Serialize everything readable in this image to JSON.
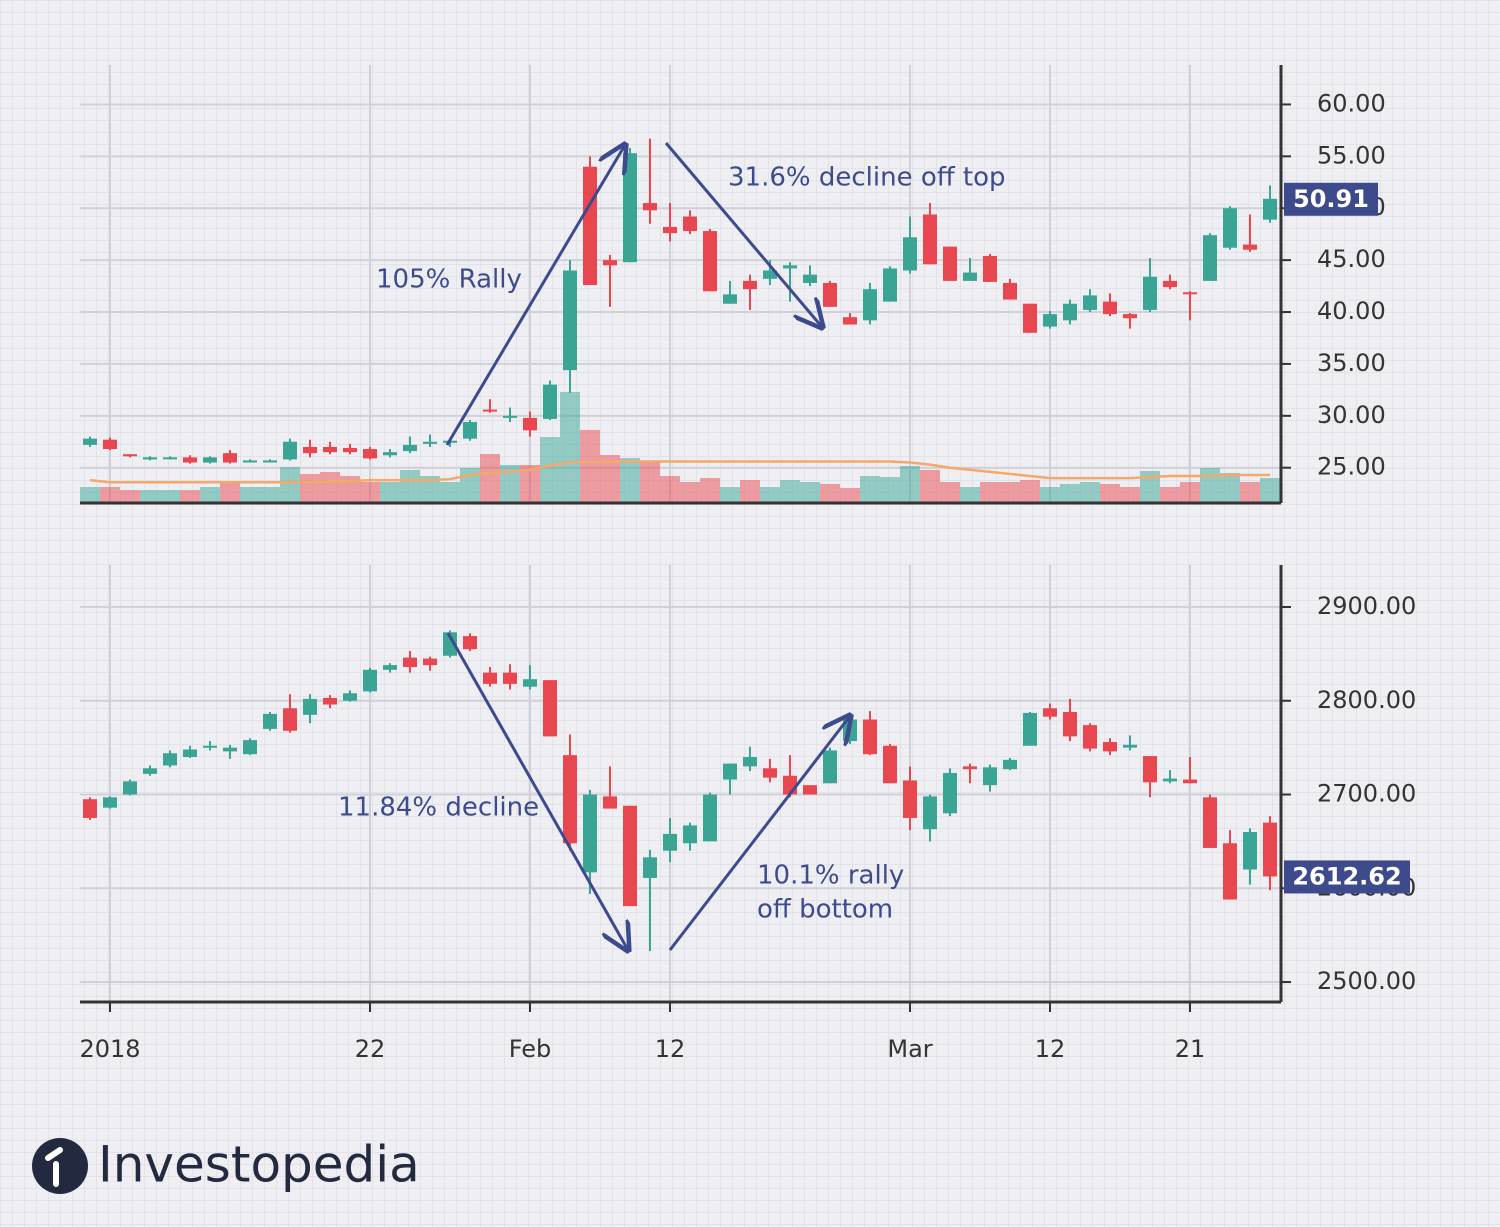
{
  "chart_data": [
    {
      "type": "candlestick",
      "open": [
        27.2,
        27.7,
        26.3,
        25.8,
        25.9,
        26.0,
        25.5,
        26.4,
        25.6,
        25.6,
        25.8,
        27.0,
        27.0,
        26.9,
        26.8,
        26.2,
        26.6,
        27.3,
        27.4,
        27.8,
        30.6,
        29.8,
        29.8,
        29.7,
        34.4,
        54.0,
        45.0,
        44.8,
        50.5,
        48.2,
        49.2,
        47.8,
        40.8,
        43.0,
        43.2,
        44.2,
        42.8,
        42.8,
        39.5,
        39.2,
        41.0,
        44.0,
        49.4,
        46.3,
        43.0,
        45.4,
        42.8,
        40.8,
        38.6,
        39.2,
        40.2,
        41.0,
        39.8,
        40.2,
        43.0,
        41.9,
        43.0,
        46.2,
        46.5,
        48.9
      ],
      "high": [
        28.0,
        27.9,
        26.3,
        26.1,
        26.1,
        26.2,
        26.1,
        26.7,
        25.8,
        25.8,
        27.8,
        27.7,
        27.5,
        27.3,
        27.0,
        26.8,
        28.0,
        28.2,
        27.8,
        29.6,
        31.6,
        30.8,
        30.4,
        33.4,
        45.0,
        55.0,
        45.5,
        55.8,
        56.7,
        50.5,
        49.8,
        48.0,
        43.0,
        43.6,
        45.0,
        44.8,
        44.5,
        43.0,
        39.9,
        42.8,
        44.4,
        49.2,
        50.5,
        46.3,
        45.2,
        45.6,
        43.2,
        40.8,
        40.1,
        41.2,
        42.2,
        41.8,
        39.9,
        45.2,
        43.6,
        42.0,
        47.6,
        50.2,
        49.4,
        52.2
      ],
      "low": [
        27.0,
        26.7,
        26.0,
        25.7,
        25.8,
        25.4,
        25.4,
        25.4,
        25.5,
        25.5,
        25.7,
        26.0,
        26.3,
        26.3,
        25.8,
        26.0,
        26.4,
        27.0,
        27.0,
        27.6,
        30.3,
        29.4,
        28.0,
        29.6,
        32.2,
        42.6,
        40.5,
        44.8,
        48.5,
        46.8,
        47.5,
        42.0,
        40.8,
        40.2,
        42.6,
        41.0,
        42.5,
        40.5,
        38.8,
        38.8,
        41.0,
        43.7,
        44.6,
        43.0,
        43.0,
        42.9,
        41.2,
        38.0,
        38.4,
        38.8,
        40.0,
        39.6,
        38.4,
        40.0,
        42.2,
        39.2,
        43.0,
        46.0,
        45.8,
        48.6
      ],
      "close": [
        27.8,
        26.8,
        26.1,
        26.0,
        26.0,
        25.5,
        26.0,
        25.5,
        25.7,
        25.7,
        27.5,
        26.4,
        26.5,
        26.5,
        25.9,
        26.5,
        27.2,
        27.5,
        27.6,
        29.4,
        30.5,
        30.0,
        28.6,
        33.0,
        44.0,
        42.6,
        44.5,
        55.3,
        49.8,
        47.6,
        47.8,
        42.0,
        41.7,
        42.2,
        44.0,
        44.5,
        43.6,
        40.5,
        38.8,
        42.2,
        44.2,
        47.2,
        44.6,
        43.0,
        43.8,
        42.9,
        41.2,
        38.0,
        39.8,
        40.8,
        41.6,
        39.8,
        39.4,
        43.4,
        42.4,
        41.8,
        47.4,
        50.0,
        46.0,
        50.91
      ],
      "volume": [
        16,
        16,
        13,
        13,
        13,
        13,
        16,
        21,
        16,
        16,
        36,
        29,
        31,
        27,
        21,
        21,
        33,
        27,
        21,
        35,
        49,
        38,
        38,
        66,
        111,
        73,
        48,
        45,
        41,
        27,
        21,
        25,
        16,
        23,
        16,
        23,
        21,
        19,
        15,
        27,
        26,
        37,
        33,
        21,
        16,
        21,
        21,
        23,
        16,
        19,
        21,
        19,
        16,
        32,
        16,
        21,
        35,
        30,
        21,
        25
      ],
      "ma": [
        23.8,
        23.6,
        23.6,
        23.6,
        23.6,
        23.6,
        23.6,
        23.6,
        23.6,
        23.6,
        23.6,
        23.6,
        23.7,
        23.7,
        23.8,
        23.8,
        23.8,
        23.8,
        23.9,
        24.3,
        24.5,
        24.6,
        24.8,
        25.2,
        25.5,
        25.6,
        25.6,
        25.6,
        25.6,
        25.6,
        25.6,
        25.6,
        25.6,
        25.6,
        25.6,
        25.6,
        25.6,
        25.6,
        25.6,
        25.6,
        25.6,
        25.5,
        25.3,
        25.0,
        24.8,
        24.6,
        24.4,
        24.2,
        24.0,
        24.0,
        24.0,
        24.0,
        24.0,
        24.1,
        24.2,
        24.2,
        24.2,
        24.3,
        24.3,
        24.3
      ],
      "up_color": "#3aa595",
      "down_color": "#e9474f",
      "ma_color": "#f4a86a",
      "ylim": [
        21.6,
        63.8
      ],
      "yticks": [
        {
          "value": 25,
          "label": "25.00"
        },
        {
          "value": 30,
          "label": "30.00"
        },
        {
          "value": 35,
          "label": "35.00"
        },
        {
          "value": 40,
          "label": "40.00"
        },
        {
          "value": 45,
          "label": "45.00"
        },
        {
          "value": 50,
          "label": "50.00"
        },
        {
          "value": 55,
          "label": "55.00"
        },
        {
          "value": 60,
          "label": "60.00"
        }
      ],
      "grid": true,
      "last_label": "50.91",
      "annotations": [
        "105% Rally",
        "31.6% decline off top"
      ]
    },
    {
      "type": "candlestick",
      "categories": [
        null,
        "2018",
        null,
        null,
        null,
        null,
        null,
        null,
        null,
        null,
        null,
        null,
        null,
        null,
        "22",
        null,
        null,
        null,
        null,
        null,
        null,
        null,
        "Feb",
        null,
        null,
        null,
        null,
        null,
        null,
        "12",
        null,
        null,
        null,
        null,
        null,
        null,
        null,
        null,
        null,
        null,
        null,
        "Mar",
        null,
        null,
        null,
        null,
        null,
        null,
        "12",
        null,
        null,
        null,
        null,
        null,
        null,
        "21",
        null,
        null,
        null,
        null
      ],
      "open": [
        2695,
        2686,
        2700,
        2722,
        2731,
        2740,
        2750,
        2746,
        2743,
        2770,
        2792,
        2785,
        2803,
        2800,
        2810,
        2833,
        2846,
        2845,
        2848,
        2869,
        2830,
        2830,
        2815,
        2822,
        2742,
        2617,
        2698,
        2688,
        2611,
        2640,
        2648,
        2650,
        2716,
        2730,
        2728,
        2720,
        2710,
        2712,
        2757,
        2780,
        2752,
        2715,
        2663,
        2680,
        2730,
        2710,
        2727,
        2752,
        2792,
        2788,
        2774,
        2756,
        2750,
        2741,
        2714,
        2716,
        2697,
        2648,
        2620,
        2670
      ],
      "high": [
        2697,
        2698,
        2716,
        2731,
        2747,
        2752,
        2757,
        2753,
        2760,
        2788,
        2807,
        2807,
        2806,
        2811,
        2835,
        2840,
        2853,
        2847,
        2875,
        2872,
        2836,
        2839,
        2838,
        2822,
        2764,
        2705,
        2730,
        2688,
        2641,
        2675,
        2670,
        2702,
        2733,
        2751,
        2738,
        2742,
        2710,
        2750,
        2785,
        2789,
        2754,
        2730,
        2700,
        2728,
        2733,
        2732,
        2739,
        2788,
        2797,
        2802,
        2776,
        2760,
        2763,
        2741,
        2726,
        2740,
        2700,
        2662,
        2664,
        2677
      ],
      "low": [
        2673,
        2685,
        2699,
        2720,
        2729,
        2739,
        2747,
        2738,
        2742,
        2768,
        2766,
        2776,
        2792,
        2799,
        2809,
        2830,
        2830,
        2832,
        2846,
        2853,
        2815,
        2812,
        2812,
        2762,
        2640,
        2594,
        2685,
        2581,
        2533,
        2628,
        2640,
        2650,
        2700,
        2725,
        2713,
        2697,
        2700,
        2712,
        2754,
        2742,
        2712,
        2662,
        2650,
        2677,
        2712,
        2703,
        2726,
        2752,
        2780,
        2757,
        2746,
        2742,
        2747,
        2697,
        2712,
        2712,
        2643,
        2588,
        2604,
        2598
      ],
      "close": [
        2675,
        2697,
        2714,
        2728,
        2744,
        2748,
        2752,
        2750,
        2758,
        2786,
        2768,
        2802,
        2796,
        2808,
        2833,
        2838,
        2836,
        2838,
        2873,
        2855,
        2818,
        2818,
        2823,
        2762,
        2648,
        2700,
        2685,
        2581,
        2633,
        2658,
        2667,
        2700,
        2733,
        2740,
        2718,
        2700,
        2700,
        2747,
        2780,
        2743,
        2712,
        2675,
        2698,
        2723,
        2727,
        2729,
        2737,
        2787,
        2783,
        2762,
        2749,
        2746,
        2753,
        2713,
        2717,
        2712,
        2643,
        2588,
        2660,
        2612.62
      ],
      "up_color": "#3aa595",
      "down_color": "#e9474f",
      "ylim": [
        2478.7,
        2944.8
      ],
      "yticks": [
        {
          "value": 2500,
          "label": "2500.00"
        },
        {
          "value": 2600,
          "label": "2600.00"
        },
        {
          "value": 2700,
          "label": "2700.00"
        },
        {
          "value": 2800,
          "label": "2800.00"
        },
        {
          "value": 2900,
          "label": "2900.00"
        }
      ],
      "grid": true,
      "last_label": "2612.62",
      "annotations": [
        "11.84% decline",
        "10.1% rally",
        "off bottom"
      ]
    }
  ],
  "brand": "Investopedia"
}
